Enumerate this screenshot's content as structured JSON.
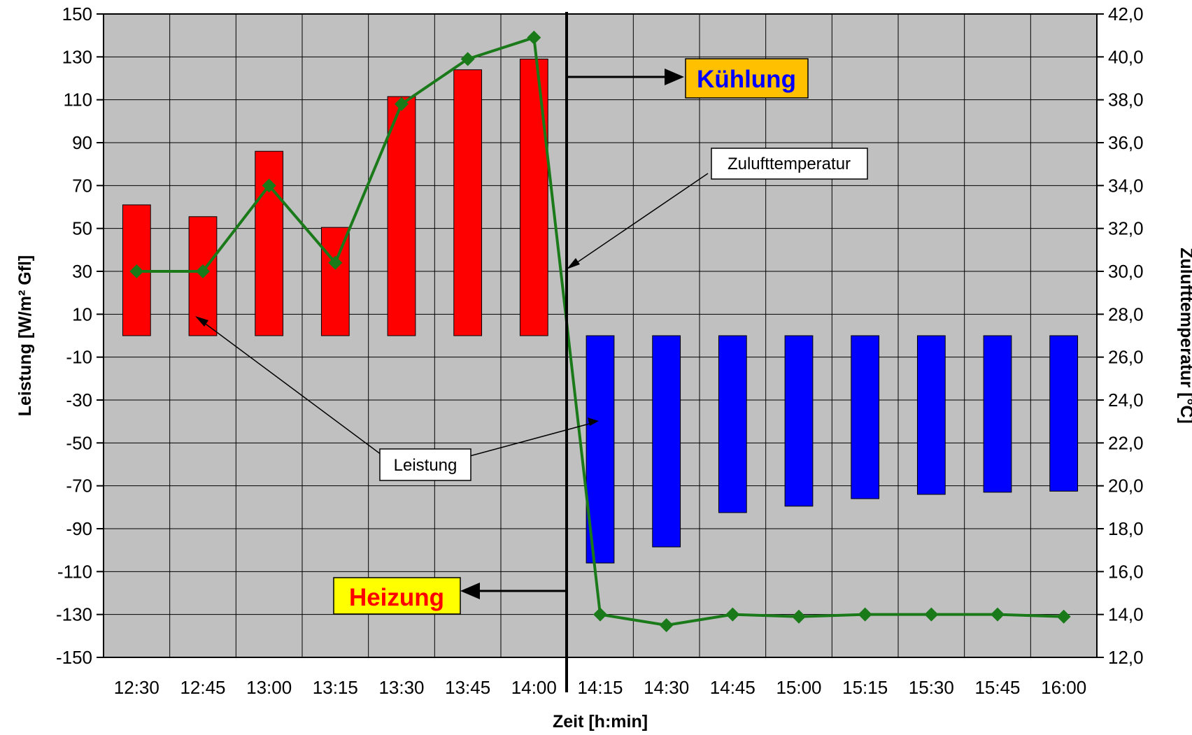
{
  "chart_data": {
    "type": "bar",
    "xlabel": "Zeit [h:min]",
    "ylabel": "Leistung [W/m² Gfl]",
    "y2label": "Zulufttemperatur [°C]",
    "categories": [
      "12:30",
      "12:45",
      "13:00",
      "13:15",
      "13:30",
      "13:45",
      "14:00",
      "14:15",
      "14:30",
      "14:45",
      "15:00",
      "15:15",
      "15:30",
      "15:45",
      "16:00"
    ],
    "ylim": [
      -150,
      150
    ],
    "yticks": [
      150,
      130,
      110,
      90,
      70,
      50,
      30,
      10,
      -10,
      -30,
      -50,
      -70,
      -90,
      -110,
      -130,
      -150
    ],
    "y2lim": [
      12,
      42
    ],
    "y2ticks": [
      "42,0",
      "40,0",
      "38,0",
      "36,0",
      "34,0",
      "32,0",
      "30,0",
      "28,0",
      "26,0",
      "24,0",
      "22,0",
      "20,0",
      "18,0",
      "16,0",
      "14,0",
      "12,0"
    ],
    "grid": true,
    "series": [
      {
        "name": "Leistung",
        "kind": "bar",
        "axis": "left",
        "values": [
          61,
          55.5,
          86,
          50.5,
          111.5,
          124,
          129,
          -106,
          -98.5,
          -82.5,
          -79.5,
          -76,
          -74,
          -73,
          -72.5
        ],
        "colors": [
          "#ff0000",
          "#ff0000",
          "#ff0000",
          "#ff0000",
          "#ff0000",
          "#ff0000",
          "#ff0000",
          "#0000ff",
          "#0000ff",
          "#0000ff",
          "#0000ff",
          "#0000ff",
          "#0000ff",
          "#0000ff",
          "#0000ff"
        ]
      },
      {
        "name": "Zulufttemperatur",
        "kind": "line",
        "axis": "right",
        "color": "#1a7a1a",
        "values": [
          30,
          30,
          34,
          30.4,
          37.8,
          39.9,
          40.9,
          14,
          13.5,
          14,
          13.9,
          14,
          14,
          14,
          13.9
        ]
      }
    ],
    "annotations": {
      "kuehlung": "Kühlung",
      "heizung": "Heizung",
      "callout_temp": "Zulufttemperatur",
      "callout_power": "Leistung"
    },
    "colors": {
      "background": "#c0c0c0",
      "heating": "#ff0000",
      "cooling": "#0000ff",
      "temperature": "#1a7a1a",
      "label_box_kuehlung": "#ffc000",
      "label_box_heizung": "#ffff00"
    }
  }
}
